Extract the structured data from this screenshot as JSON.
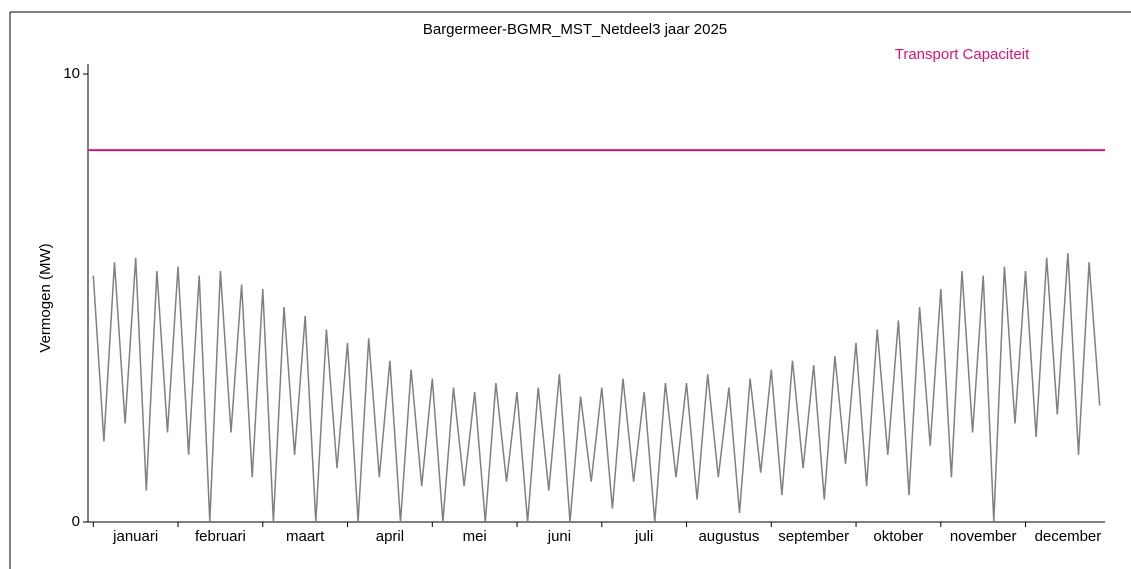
{
  "chart_data": {
    "type": "line",
    "title": "Bargermeer-BGMR_MST_Netdeel3 jaar 2025",
    "ylabel": "Vermogen (MW)",
    "categories": [
      null,
      null,
      null,
      null,
      "januari",
      null,
      null,
      null,
      null,
      null,
      null,
      null,
      "februari",
      null,
      null,
      null,
      null,
      null,
      null,
      null,
      "maart",
      null,
      null,
      null,
      null,
      null,
      null,
      null,
      "april",
      null,
      null,
      null,
      null,
      null,
      null,
      null,
      "mei",
      null,
      null,
      null,
      null,
      null,
      null,
      null,
      "juni",
      null,
      null,
      null,
      null,
      null,
      null,
      null,
      "juli",
      null,
      null,
      null,
      null,
      null,
      null,
      null,
      "augustus",
      null,
      null,
      null,
      null,
      null,
      null,
      null,
      "september",
      null,
      null,
      null,
      null,
      null,
      null,
      null,
      "oktober",
      null,
      null,
      null,
      null,
      null,
      null,
      null,
      "november",
      null,
      null,
      null,
      null,
      null,
      null,
      null,
      "december",
      null,
      null,
      null
    ],
    "series": [
      {
        "color": "#808080",
        "values": [
          5.5,
          1.8,
          5.8,
          2.2,
          5.9,
          0.7,
          5.6,
          2.0,
          5.7,
          1.5,
          5.5,
          0.0,
          5.6,
          2.0,
          5.3,
          1.0,
          5.2,
          0.0,
          4.8,
          1.5,
          4.6,
          0.0,
          4.3,
          1.2,
          4.0,
          0.0,
          4.1,
          1.0,
          3.6,
          0.0,
          3.4,
          0.8,
          3.2,
          0.0,
          3.0,
          0.8,
          2.9,
          0.0,
          3.1,
          0.9,
          2.9,
          0.0,
          3.0,
          0.7,
          3.3,
          0.0,
          2.8,
          0.9,
          3.0,
          0.3,
          3.2,
          0.9,
          2.9,
          0.0,
          3.1,
          1.0,
          3.1,
          0.5,
          3.3,
          1.0,
          3.0,
          0.2,
          3.2,
          1.1,
          3.4,
          0.6,
          3.6,
          1.2,
          3.5,
          0.5,
          3.7,
          1.3,
          4.0,
          0.8,
          4.3,
          1.5,
          4.5,
          0.6,
          4.8,
          1.7,
          5.2,
          1.0,
          5.6,
          2.0,
          5.5,
          0.0,
          5.7,
          2.2,
          5.6,
          1.9,
          5.9,
          2.4,
          6.0,
          1.5,
          5.8,
          2.6
        ]
      }
    ],
    "hlines": [
      {
        "value": 8.3,
        "label": "Transport Capaciteit",
        "color": "#d6157a"
      }
    ],
    "ylim": [
      0,
      10
    ],
    "yticks": [
      0,
      10
    ]
  }
}
